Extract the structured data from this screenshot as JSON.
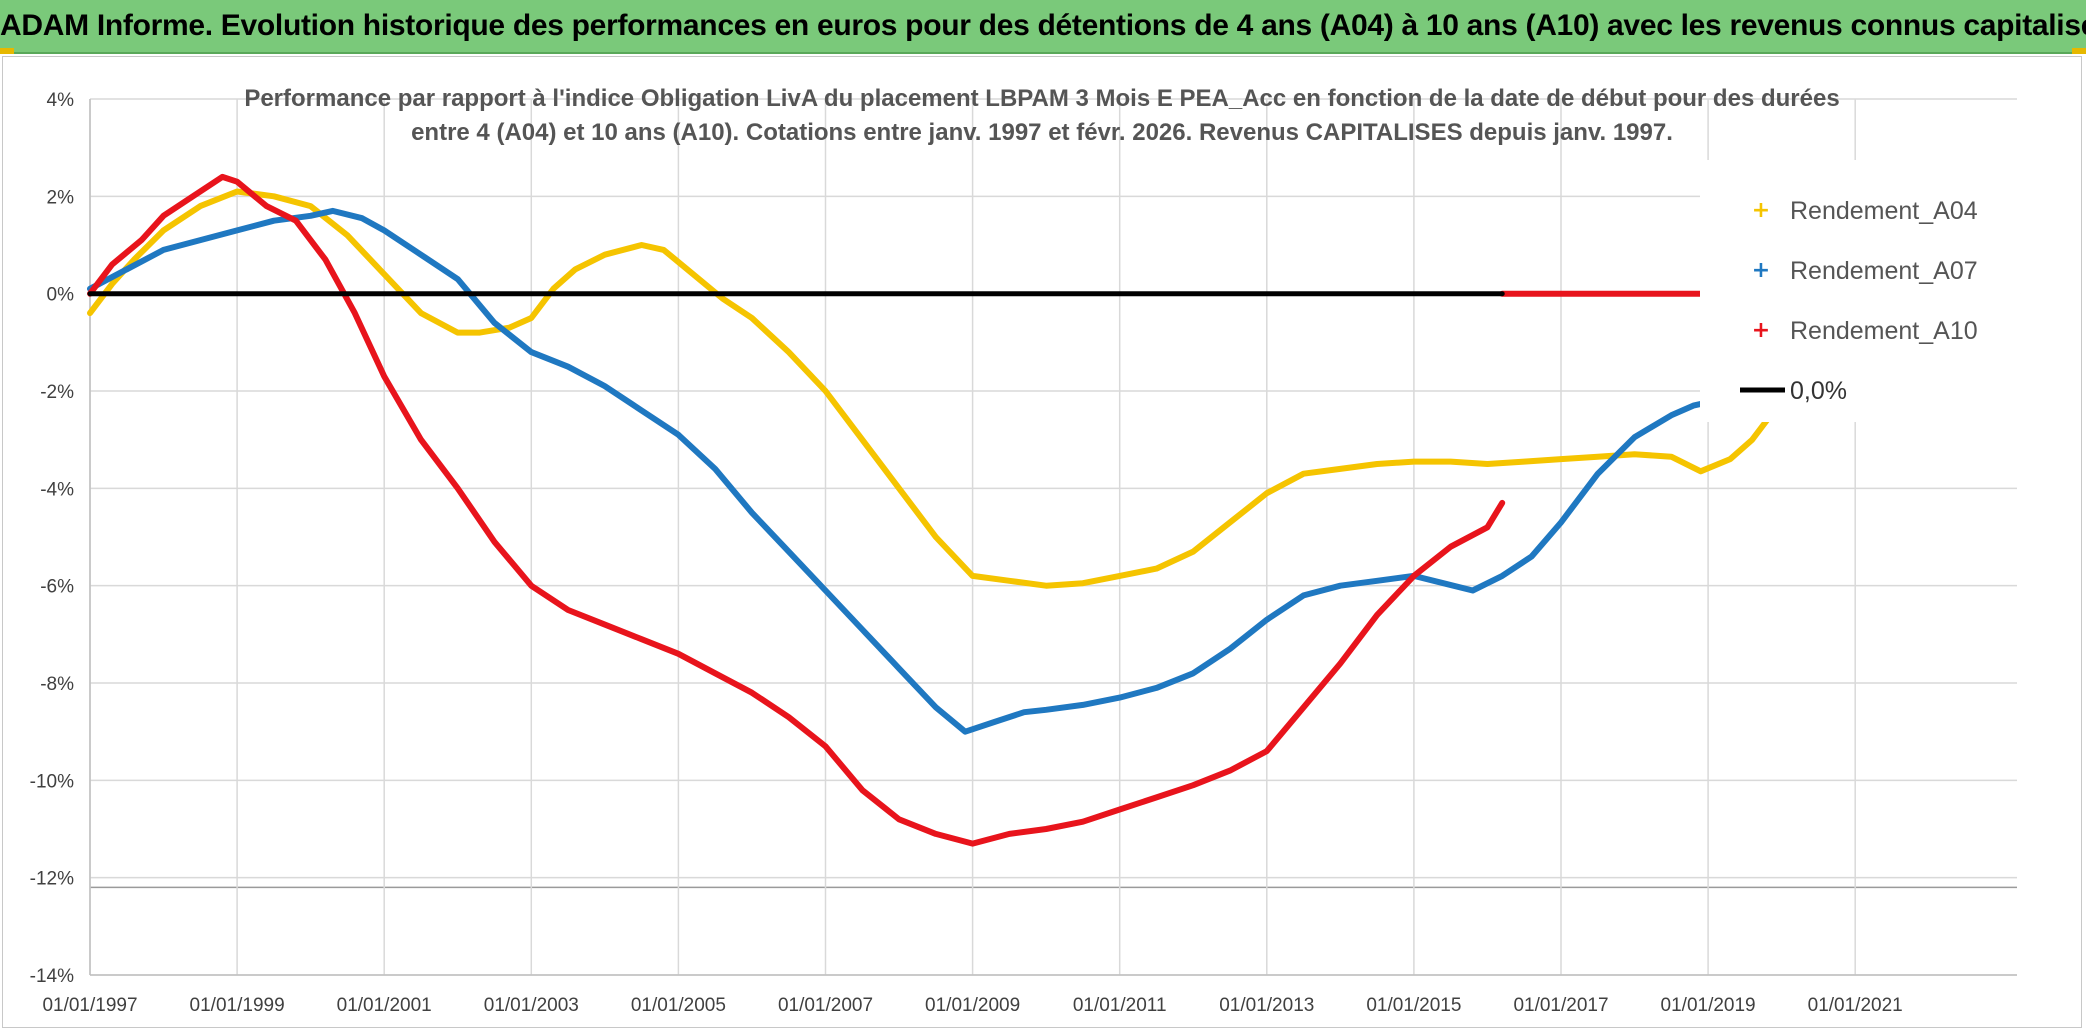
{
  "banner": {
    "title": "ADAM Informe. Evolution historique des performances en euros pour des détentions de 4 ans (A04) à 10 ans (A10) avec les revenus connus capitalisés"
  },
  "colors": {
    "banner_bg": "#7ac97a",
    "A04": "#f5c400",
    "A07": "#1f78c1",
    "A10": "#e8141c",
    "zero": "#000000",
    "grid": "#d9d9d9"
  },
  "chart_data": {
    "type": "line",
    "title_lines": [
      "Performance par rapport à l'indice Obligation LivA  du placement LBPAM 3 Mois E PEA_Acc en fonction de la date de début pour des durées",
      "entre 4 (A04) et 10 ans (A10). Cotations entre janv. 1997 et févr. 2026. Revenus CAPITALISES depuis janv. 1997."
    ],
    "x_tick_labels": [
      "01/01/1997",
      "01/01/1999",
      "01/01/2001",
      "01/01/2003",
      "01/01/2005",
      "01/01/2007",
      "01/01/2009",
      "01/01/2011",
      "01/01/2013",
      "01/01/2015",
      "01/01/2017",
      "01/01/2019",
      "01/01/2021"
    ],
    "y_tick_labels": [
      "4%",
      "2%",
      "0%",
      "-2%",
      "-4%",
      "-6%",
      "-8%",
      "-10%",
      "-12%",
      "-14%"
    ],
    "xlim": [
      1997.0,
      2023.2
    ],
    "ylim": [
      -14,
      4
    ],
    "ytick_step": 2,
    "legend_position": "top-right",
    "legend": [
      "Rendement_A04",
      "Rendement_A07",
      "Rendement_A10",
      "0,0%"
    ],
    "series": [
      {
        "name": "Rendement_A04",
        "color_key": "A04",
        "x": [
          1997.0,
          1997.3,
          1997.6,
          1998.0,
          1998.5,
          1999.0,
          1999.5,
          2000.0,
          2000.5,
          2001.0,
          2001.5,
          2002.0,
          2002.3,
          2002.7,
          2003.0,
          2003.3,
          2003.6,
          2004.0,
          2004.5,
          2004.8,
          2005.2,
          2005.6,
          2006.0,
          2006.5,
          2007.0,
          2007.5,
          2008.0,
          2008.5,
          2009.0,
          2009.5,
          2010.0,
          2010.5,
          2011.0,
          2011.5,
          2012.0,
          2012.5,
          2013.0,
          2013.5,
          2014.0,
          2014.5,
          2015.0,
          2015.5,
          2016.0,
          2016.5,
          2017.0,
          2017.5,
          2018.0,
          2018.5,
          2018.9,
          2019.3,
          2019.6,
          2019.9
        ],
        "values": [
          -0.4,
          0.2,
          0.7,
          1.3,
          1.8,
          2.1,
          2.0,
          1.8,
          1.2,
          0.4,
          -0.4,
          -0.8,
          -0.8,
          -0.7,
          -0.5,
          0.1,
          0.5,
          0.8,
          1.0,
          0.9,
          0.4,
          -0.1,
          -0.5,
          -1.2,
          -2.0,
          -3.0,
          -4.0,
          -5.0,
          -5.8,
          -5.9,
          -6.0,
          -5.95,
          -5.8,
          -5.65,
          -5.3,
          -4.7,
          -4.1,
          -3.7,
          -3.6,
          -3.5,
          -3.45,
          -3.45,
          -3.5,
          -3.45,
          -3.4,
          -3.35,
          -3.3,
          -3.35,
          -3.65,
          -3.4,
          -3.0,
          -2.4
        ]
      },
      {
        "name": "Rendement_A07",
        "color_key": "A07",
        "x": [
          1997.0,
          1997.5,
          1998.0,
          1998.5,
          1999.0,
          1999.5,
          2000.0,
          2000.3,
          2000.7,
          2001.0,
          2001.5,
          2002.0,
          2002.5,
          2003.0,
          2003.5,
          2004.0,
          2004.5,
          2005.0,
          2005.5,
          2006.0,
          2006.5,
          2007.0,
          2007.5,
          2008.0,
          2008.5,
          2008.9,
          2009.3,
          2009.7,
          2010.0,
          2010.5,
          2011.0,
          2011.5,
          2012.0,
          2012.5,
          2013.0,
          2013.5,
          2014.0,
          2014.5,
          2015.0,
          2015.4,
          2015.8,
          2016.2,
          2016.6,
          2017.0,
          2017.5,
          2018.0,
          2018.5,
          2018.8,
          2019.1
        ],
        "values": [
          0.1,
          0.5,
          0.9,
          1.1,
          1.3,
          1.5,
          1.6,
          1.7,
          1.55,
          1.3,
          0.8,
          0.3,
          -0.6,
          -1.2,
          -1.5,
          -1.9,
          -2.4,
          -2.9,
          -3.6,
          -4.5,
          -5.3,
          -6.1,
          -6.9,
          -7.7,
          -8.5,
          -9.0,
          -8.8,
          -8.6,
          -8.55,
          -8.45,
          -8.3,
          -8.1,
          -7.8,
          -7.3,
          -6.7,
          -6.2,
          -6.0,
          -5.9,
          -5.8,
          -5.95,
          -6.1,
          -5.8,
          -5.4,
          -4.7,
          -3.7,
          -2.95,
          -2.5,
          -2.3,
          -2.2
        ]
      },
      {
        "name": "Rendement_A10",
        "color_key": "A10",
        "x": [
          1997.0,
          1997.3,
          1997.7,
          1998.0,
          1998.4,
          1998.8,
          1999.0,
          1999.4,
          1999.8,
          2000.2,
          2000.6,
          2001.0,
          2001.5,
          2002.0,
          2002.5,
          2003.0,
          2003.5,
          2004.0,
          2004.5,
          2005.0,
          2005.5,
          2006.0,
          2006.5,
          2007.0,
          2007.5,
          2008.0,
          2008.5,
          2009.0,
          2009.5,
          2010.0,
          2010.5,
          2011.0,
          2011.5,
          2012.0,
          2012.5,
          2013.0,
          2013.5,
          2014.0,
          2014.5,
          2015.0,
          2015.5,
          2016.0,
          2016.2
        ],
        "values": [
          0.0,
          0.6,
          1.1,
          1.6,
          2.0,
          2.4,
          2.3,
          1.8,
          1.5,
          0.7,
          -0.4,
          -1.7,
          -3.0,
          -4.0,
          -5.1,
          -6.0,
          -6.5,
          -6.8,
          -7.1,
          -7.4,
          -7.8,
          -8.2,
          -8.7,
          -9.3,
          -10.2,
          -10.8,
          -11.1,
          -11.3,
          -11.1,
          -11.0,
          -10.85,
          -10.6,
          -10.35,
          -10.1,
          -9.8,
          -9.4,
          -8.5,
          -7.6,
          -6.6,
          -5.8,
          -5.2,
          -4.8,
          -4.3
        ]
      },
      {
        "name": "Rendement_A10",
        "color_key": "A10",
        "x": [
          2016.2,
          2023.2
        ],
        "values": [
          0.0,
          0.0
        ]
      },
      {
        "name": "0,0%",
        "color_key": "zero",
        "x": [
          1997.0,
          2016.2
        ],
        "values": [
          0.0,
          0.0
        ]
      }
    ]
  }
}
